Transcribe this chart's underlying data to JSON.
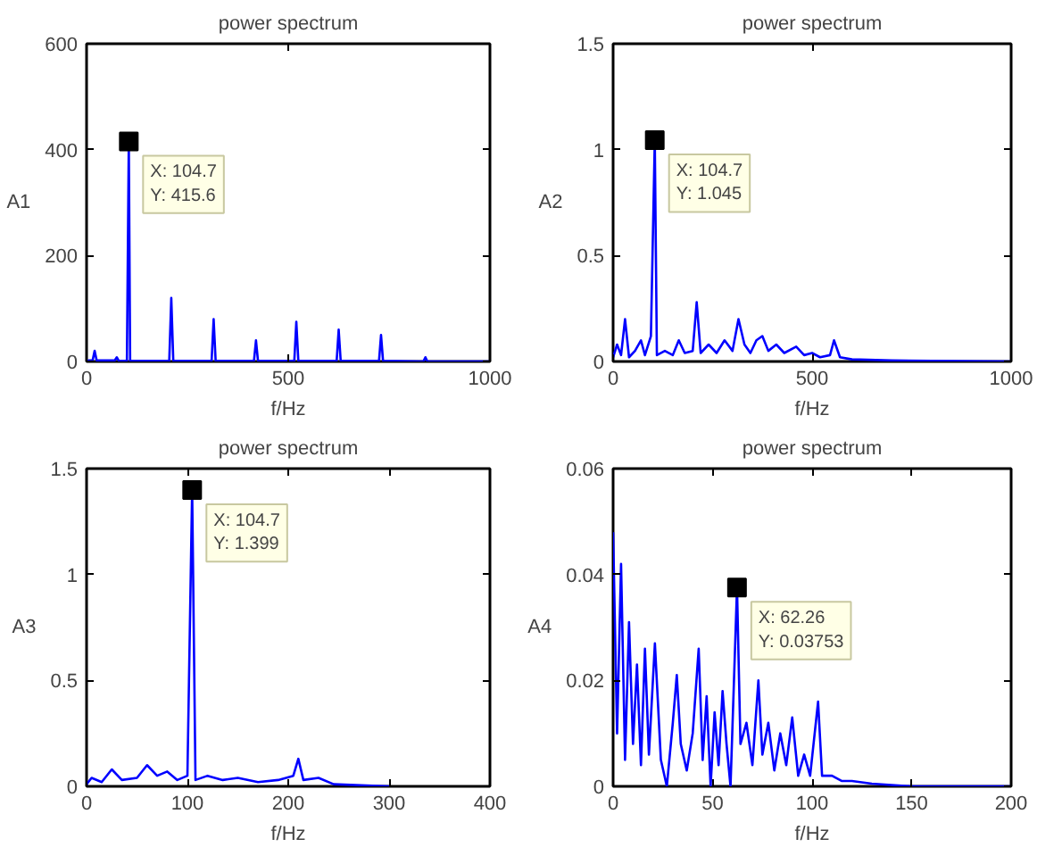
{
  "chart_data": [
    {
      "type": "line",
      "title": "power spectrum",
      "xlabel": "f/Hz",
      "ylabel": "A1",
      "xlim": [
        0,
        1000
      ],
      "ylim": [
        0,
        600
      ],
      "xticks": [
        0,
        500,
        1000
      ],
      "yticks": [
        0,
        200,
        400,
        600
      ],
      "grid": false,
      "marker": "none",
      "line_style": "solid",
      "series": [
        {
          "color": "#0000ff",
          "x": [
            0,
            5,
            15,
            20,
            25,
            70,
            75,
            80,
            100,
            104.7,
            108,
            205,
            210,
            215,
            310,
            315,
            320,
            415,
            420,
            425,
            515,
            520,
            525,
            620,
            625,
            630,
            725,
            730,
            735,
            835,
            840,
            845,
            1000
          ],
          "values": [
            0,
            2,
            2,
            20,
            2,
            2,
            8,
            1,
            1,
            415.6,
            1,
            1,
            120,
            1,
            1,
            80,
            1,
            1,
            40,
            1,
            1,
            75,
            1,
            1,
            60,
            1,
            1,
            50,
            1,
            0,
            8,
            0,
            0
          ]
        }
      ],
      "annotations": [
        "X: 104.7\nY: 415.6"
      ]
    },
    {
      "type": "line",
      "title": "power spectrum",
      "xlabel": "f/Hz",
      "ylabel": "A2",
      "xlim": [
        0,
        1000
      ],
      "ylim": [
        0,
        1.5
      ],
      "xticks": [
        0,
        500,
        1000
      ],
      "yticks": [
        0,
        0.5,
        1,
        1.5
      ],
      "grid": false,
      "marker": "none",
      "line_style": "solid",
      "series": [
        {
          "color": "#0000ff",
          "x": [
            0,
            10,
            20,
            30,
            40,
            55,
            70,
            80,
            95,
            104.7,
            110,
            130,
            150,
            165,
            180,
            200,
            210,
            220,
            240,
            260,
            280,
            300,
            315,
            330,
            345,
            360,
            375,
            390,
            410,
            430,
            460,
            480,
            500,
            520,
            545,
            555,
            570,
            600,
            700,
            1000
          ],
          "values": [
            0.02,
            0.08,
            0.03,
            0.2,
            0.02,
            0.05,
            0.1,
            0.03,
            0.12,
            1.045,
            0.03,
            0.05,
            0.03,
            0.1,
            0.04,
            0.05,
            0.28,
            0.04,
            0.08,
            0.04,
            0.1,
            0.05,
            0.2,
            0.08,
            0.04,
            0.1,
            0.12,
            0.05,
            0.08,
            0.04,
            0.07,
            0.03,
            0.04,
            0.02,
            0.03,
            0.1,
            0.02,
            0.01,
            0.005,
            0
          ]
        }
      ],
      "annotations": [
        "X: 104.7\nY: 1.045"
      ]
    },
    {
      "type": "line",
      "title": "power spectrum",
      "xlabel": "f/Hz",
      "ylabel": "A3",
      "xlim": [
        0,
        400
      ],
      "ylim": [
        0,
        1.5
      ],
      "xticks": [
        0,
        100,
        200,
        300,
        400
      ],
      "yticks": [
        0,
        0.5,
        1,
        1.5
      ],
      "grid": false,
      "marker": "none",
      "line_style": "solid",
      "series": [
        {
          "color": "#0000ff",
          "x": [
            0,
            5,
            15,
            25,
            35,
            50,
            60,
            70,
            80,
            90,
            100,
            104.7,
            108,
            120,
            135,
            150,
            170,
            190,
            205,
            210,
            215,
            230,
            245,
            300
          ],
          "values": [
            0.01,
            0.04,
            0.02,
            0.08,
            0.03,
            0.04,
            0.1,
            0.05,
            0.07,
            0.03,
            0.05,
            1.399,
            0.03,
            0.05,
            0.03,
            0.04,
            0.02,
            0.03,
            0.05,
            0.13,
            0.03,
            0.04,
            0.01,
            0
          ]
        }
      ],
      "annotations": [
        "X: 104.7\nY: 1.399"
      ]
    },
    {
      "type": "line",
      "title": "power spectrum",
      "xlabel": "f/Hz",
      "ylabel": "A4",
      "xlim": [
        0,
        200
      ],
      "ylim": [
        0,
        0.06
      ],
      "xticks": [
        0,
        50,
        100,
        150,
        200
      ],
      "yticks": [
        0,
        0.02,
        0.04,
        0.06
      ],
      "grid": false,
      "marker": "none",
      "line_style": "solid",
      "series": [
        {
          "color": "#0000ff",
          "x": [
            0,
            2,
            4,
            6,
            8,
            10,
            12,
            14,
            16,
            18,
            21,
            24,
            27,
            30,
            32,
            34,
            37,
            40,
            43,
            45,
            47,
            49,
            51,
            53,
            55,
            57,
            59,
            62.26,
            64,
            67,
            70,
            73,
            75,
            78,
            81,
            84,
            87,
            90,
            93,
            96,
            99,
            103,
            105,
            110,
            115,
            120,
            130,
            150,
            200
          ],
          "values": [
            0.048,
            0.01,
            0.042,
            0.005,
            0.031,
            0.008,
            0.023,
            0.004,
            0.026,
            0.006,
            0.027,
            0.005,
            0.0,
            0.012,
            0.021,
            0.008,
            0.003,
            0.01,
            0.026,
            0.005,
            0.017,
            0.0,
            0.014,
            0.004,
            0.018,
            0.008,
            0.0,
            0.03753,
            0.008,
            0.012,
            0.004,
            0.02,
            0.006,
            0.012,
            0.003,
            0.01,
            0.004,
            0.013,
            0.002,
            0.006,
            0.002,
            0.016,
            0.002,
            0.002,
            0.001,
            0.001,
            0.0005,
            0,
            0
          ]
        }
      ],
      "annotations": [
        "X: 62.26\nY: 0.03753"
      ]
    }
  ]
}
